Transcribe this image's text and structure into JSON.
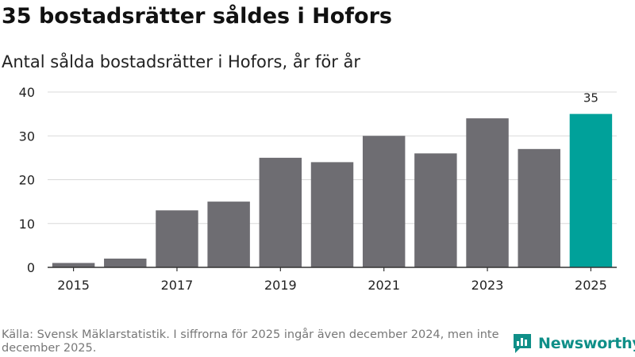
{
  "title": "35 bostadsrätter såldes i Hofors",
  "subtitle": "Antal sålda bostadsrätter i Hofors, år för år",
  "source": "Källa: Svensk Mäklarstatistik. I siffrorna för 2025 ingår även december 2024, men inte december 2025.",
  "brand": {
    "name": "Newsworthy",
    "icon": "newsworthy-logo-icon"
  },
  "colors": {
    "bar": "#6e6d72",
    "highlight": "#00a19a",
    "axis": "#333333",
    "grid": "#d9d9d9",
    "text": "#222222"
  },
  "chart_data": {
    "type": "bar",
    "categories": [
      "2015",
      "2016",
      "2017",
      "2018",
      "2019",
      "2020",
      "2021",
      "2022",
      "2023",
      "2024",
      "2025"
    ],
    "values": [
      1,
      2,
      13,
      15,
      25,
      24,
      30,
      26,
      34,
      27,
      35
    ],
    "x_tick_labels": [
      "2015",
      "2017",
      "2019",
      "2021",
      "2023",
      "2025"
    ],
    "y_ticks": [
      0,
      10,
      20,
      30,
      40
    ],
    "ylim": [
      0,
      40
    ],
    "grid": true,
    "highlight_index": 10,
    "data_labels": [
      {
        "index": 10,
        "text": "35"
      }
    ]
  }
}
